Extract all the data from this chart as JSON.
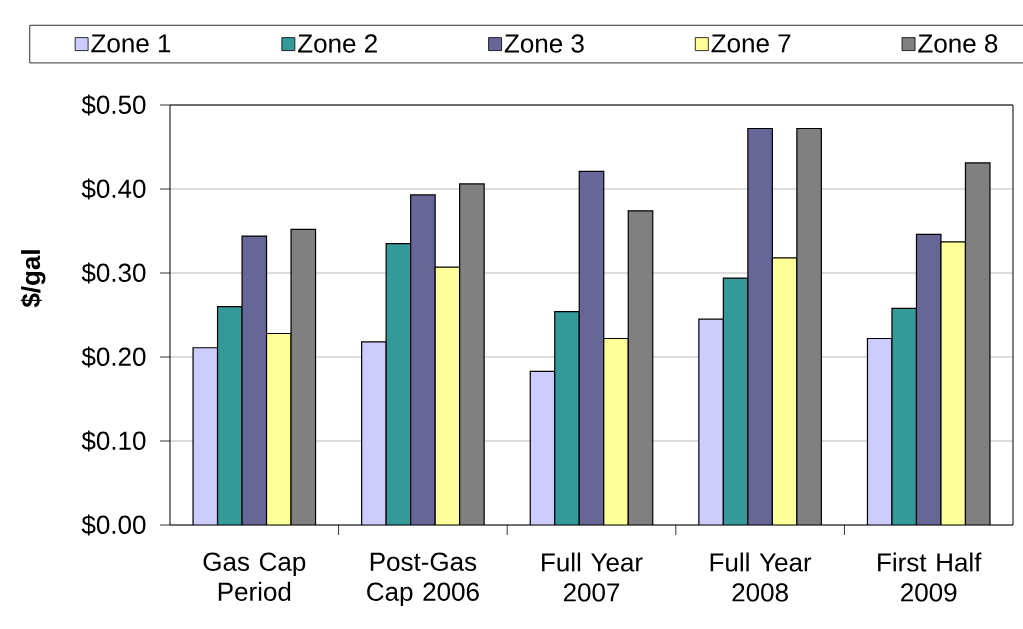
{
  "chart_data": {
    "type": "bar",
    "ylabel": "$/gal",
    "categories": [
      "Gas Cap Period",
      "Post-Gas Cap 2006",
      "Full Year 2007",
      "Full Year 2008",
      "First Half 2009"
    ],
    "ylim": [
      0,
      0.5
    ],
    "yticks": [
      {
        "value": 0,
        "label": "$0.00"
      },
      {
        "value": 0.1,
        "label": "$0.10"
      },
      {
        "value": 0.2,
        "label": "$0.20"
      },
      {
        "value": 0.3,
        "label": "$0.30"
      },
      {
        "value": 0.4,
        "label": "$0.40"
      },
      {
        "value": 0.5,
        "label": "$0.50"
      }
    ],
    "grid": "y",
    "legend": "top",
    "series": [
      {
        "name": "Zone 1",
        "color": "#ccccff",
        "values": [
          0.211,
          0.218,
          0.183,
          0.245,
          0.222
        ]
      },
      {
        "name": "Zone 2",
        "color": "#339999",
        "values": [
          0.26,
          0.335,
          0.254,
          0.294,
          0.258
        ]
      },
      {
        "name": "Zone 3",
        "color": "#666699",
        "values": [
          0.344,
          0.393,
          0.421,
          0.472,
          0.346
        ]
      },
      {
        "name": "Zone 7",
        "color": "#ffff99",
        "values": [
          0.228,
          0.307,
          0.222,
          0.318,
          0.337
        ]
      },
      {
        "name": "Zone 8",
        "color": "#808080",
        "values": [
          0.352,
          0.406,
          0.374,
          0.472,
          0.431
        ]
      }
    ]
  }
}
